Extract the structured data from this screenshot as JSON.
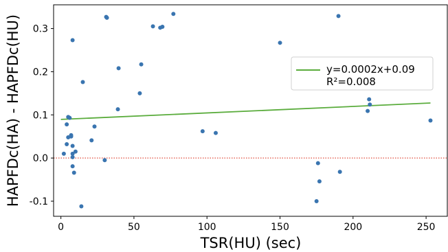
{
  "chart_data": {
    "type": "scatter",
    "title": "",
    "xlabel": "TSR(HU) (sec)",
    "ylabel": "HAPFDc(HA) - HAPFDc(HU)",
    "xlim": [
      -5,
      265
    ],
    "ylim": [
      -0.135,
      0.355
    ],
    "xticks": [
      0,
      50,
      100,
      150,
      200,
      250
    ],
    "yticks": [
      -0.1,
      0.0,
      0.1,
      0.2,
      0.3
    ],
    "xtick_labels": [
      "0",
      "50",
      "100",
      "150",
      "200",
      "250"
    ],
    "ytick_labels": [
      "-0.1",
      "0.0",
      "0.1",
      "0.2",
      "0.3"
    ],
    "grid": false,
    "point_color": "#3a75b0",
    "fit_color": "#5aac3c",
    "zero_line_color": "#e04a3a",
    "legend": {
      "placement": "upper-right",
      "equation": "y=0.0002x+0.09",
      "r_squared": "R²=0.008"
    },
    "fit_line": {
      "slope": 0.00015,
      "intercept": 0.0895,
      "x_range": [
        0,
        253
      ]
    },
    "zero_line": {
      "y": 0.0,
      "style": "dotted"
    },
    "points": [
      {
        "x": 2,
        "y": 0.01
      },
      {
        "x": 4,
        "y": 0.078
      },
      {
        "x": 4,
        "y": 0.032
      },
      {
        "x": 5,
        "y": 0.095
      },
      {
        "x": 5,
        "y": 0.048
      },
      {
        "x": 6,
        "y": 0.093
      },
      {
        "x": 7,
        "y": 0.05
      },
      {
        "x": 7,
        "y": 0.053
      },
      {
        "x": 8,
        "y": 0.273
      },
      {
        "x": 8,
        "y": 0.028
      },
      {
        "x": 8,
        "y": 0.01
      },
      {
        "x": 8,
        "y": 0.002
      },
      {
        "x": 8,
        "y": -0.019
      },
      {
        "x": 9,
        "y": -0.034
      },
      {
        "x": 10,
        "y": 0.015
      },
      {
        "x": 14,
        "y": -0.112
      },
      {
        "x": 15,
        "y": 0.176
      },
      {
        "x": 21,
        "y": 0.041
      },
      {
        "x": 23,
        "y": 0.073
      },
      {
        "x": 30,
        "y": -0.005
      },
      {
        "x": 31,
        "y": 0.327
      },
      {
        "x": 31.5,
        "y": 0.325
      },
      {
        "x": 39,
        "y": 0.113
      },
      {
        "x": 39.5,
        "y": 0.208
      },
      {
        "x": 54,
        "y": 0.15
      },
      {
        "x": 55,
        "y": 0.217
      },
      {
        "x": 63,
        "y": 0.305
      },
      {
        "x": 68,
        "y": 0.302
      },
      {
        "x": 69.5,
        "y": 0.304
      },
      {
        "x": 77,
        "y": 0.334
      },
      {
        "x": 97,
        "y": 0.062
      },
      {
        "x": 106,
        "y": 0.058
      },
      {
        "x": 150,
        "y": 0.267
      },
      {
        "x": 175,
        "y": -0.1
      },
      {
        "x": 176,
        "y": -0.012
      },
      {
        "x": 177,
        "y": -0.054
      },
      {
        "x": 190,
        "y": 0.329
      },
      {
        "x": 191,
        "y": -0.032
      },
      {
        "x": 210,
        "y": 0.109
      },
      {
        "x": 211,
        "y": 0.136
      },
      {
        "x": 211.5,
        "y": 0.124
      },
      {
        "x": 253,
        "y": 0.087
      }
    ]
  }
}
